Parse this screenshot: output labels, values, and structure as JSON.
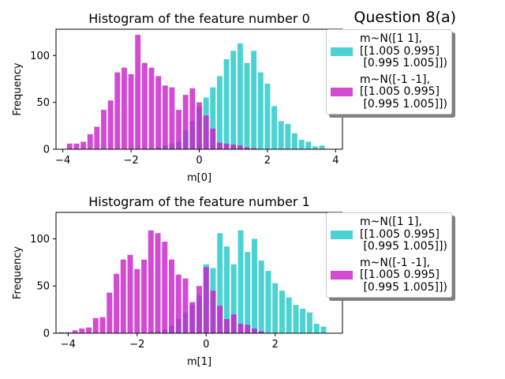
{
  "suptitle": "Question 8(a)",
  "colors": {
    "series1": "#1ec8c8",
    "series2": "#c81ec8",
    "alpha": 0.8
  },
  "chart_data": [
    {
      "type": "bar",
      "title": "Histogram of the feature number 0",
      "xlabel": "m[0]",
      "ylabel": "Frequency",
      "xlim": [
        -4.2,
        4.2
      ],
      "ylim": [
        0,
        128
      ],
      "xticks": [
        -4,
        -2,
        0,
        2,
        4
      ],
      "yticks": [
        0,
        50,
        100
      ],
      "bin_width": 0.2,
      "legend_placement": "upper right, outside axes",
      "series": [
        {
          "name": "m~N([1 1],\n[[1.005 0.995]\n [0.995 1.005]])",
          "color": "#1ec8c8",
          "x": [
            -1.6,
            -1.4,
            -1.2,
            -1.0,
            -0.8,
            -0.6,
            -0.4,
            -0.2,
            0.0,
            0.2,
            0.4,
            0.6,
            0.8,
            1.0,
            1.2,
            1.4,
            1.6,
            1.8,
            2.0,
            2.2,
            2.4,
            2.6,
            2.8,
            3.0,
            3.2,
            3.4,
            3.6
          ],
          "values": [
            1,
            1,
            2,
            4,
            6,
            8,
            20,
            30,
            45,
            55,
            66,
            78,
            96,
            105,
            113,
            92,
            105,
            82,
            70,
            46,
            30,
            27,
            17,
            10,
            8,
            3,
            4
          ]
        },
        {
          "name": "m~N([-1 -1],\n[[1.005 0.995]\n [0.995 1.005]])",
          "color": "#c81ec8",
          "x": [
            -3.8,
            -3.6,
            -3.4,
            -3.2,
            -3.0,
            -2.8,
            -2.6,
            -2.4,
            -2.2,
            -2.0,
            -1.8,
            -1.6,
            -1.4,
            -1.2,
            -1.0,
            -0.8,
            -0.6,
            -0.4,
            -0.2,
            0.0,
            0.2,
            0.4,
            0.6,
            0.8,
            1.0,
            1.2,
            1.4,
            1.6
          ],
          "values": [
            6,
            6,
            8,
            16,
            24,
            42,
            52,
            82,
            87,
            80,
            122,
            92,
            87,
            78,
            68,
            66,
            42,
            58,
            65,
            50,
            36,
            22,
            7,
            6,
            5,
            4,
            2,
            1
          ]
        }
      ]
    },
    {
      "type": "bar",
      "title": "Histogram of the feature number 1",
      "xlabel": "m[1]",
      "ylabel": "Frequency",
      "xlim": [
        -4.35,
        3.95
      ],
      "ylim": [
        0,
        128
      ],
      "xticks": [
        -4,
        -2,
        0,
        2
      ],
      "yticks": [
        0,
        50,
        100
      ],
      "bin_width": 0.2,
      "legend_placement": "upper right, outside axes",
      "series": [
        {
          "name": "m~N([1 1],\n[[1.005 0.995]\n [0.995 1.005]])",
          "color": "#1ec8c8",
          "x": [
            -1.6,
            -1.4,
            -1.2,
            -1.0,
            -0.8,
            -0.6,
            -0.4,
            -0.2,
            0.0,
            0.2,
            0.4,
            0.6,
            0.8,
            1.0,
            1.2,
            1.4,
            1.6,
            1.8,
            2.0,
            2.2,
            2.4,
            2.6,
            2.8,
            3.0,
            3.2,
            3.4
          ],
          "values": [
            1,
            2,
            4,
            8,
            15,
            22,
            30,
            40,
            73,
            69,
            106,
            92,
            73,
            109,
            86,
            100,
            77,
            66,
            53,
            45,
            38,
            30,
            26,
            22,
            10,
            7
          ]
        },
        {
          "name": "m~N([-1 -1],\n[[1.005 0.995]\n [0.995 1.005]])",
          "color": "#c81ec8",
          "x": [
            -4.2,
            -4.0,
            -3.8,
            -3.6,
            -3.4,
            -3.2,
            -3.0,
            -2.8,
            -2.6,
            -2.4,
            -2.2,
            -2.0,
            -1.8,
            -1.6,
            -1.4,
            -1.2,
            -1.0,
            -0.8,
            -0.6,
            -0.4,
            -0.2,
            0.0,
            0.2,
            0.4,
            0.6,
            0.8,
            1.0,
            1.2,
            1.4,
            1.6
          ],
          "values": [
            1,
            1,
            3,
            5,
            6,
            16,
            17,
            43,
            63,
            78,
            83,
            68,
            78,
            109,
            106,
            97,
            78,
            62,
            58,
            33,
            50,
            70,
            45,
            29,
            15,
            20,
            10,
            9,
            5,
            2
          ]
        }
      ]
    }
  ]
}
